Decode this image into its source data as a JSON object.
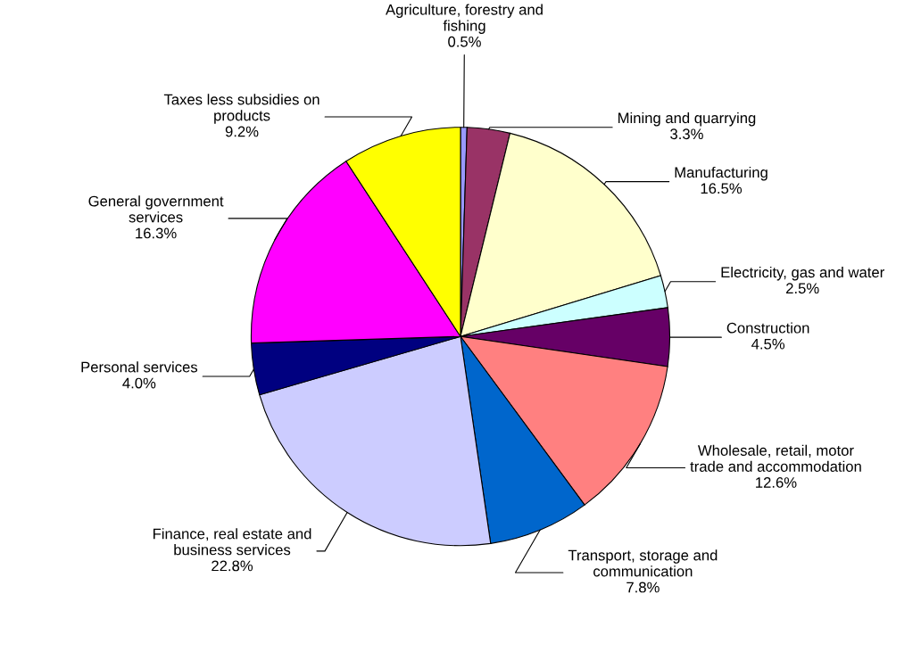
{
  "chart_data": {
    "type": "pie",
    "categories": [
      "Agriculture, forestry and\nfishing",
      "Mining and quarrying",
      "Manufacturing",
      "Electricity, gas and water",
      "Construction",
      "Wholesale, retail, motor\ntrade and accommodation",
      "Transport, storage and\ncommunication",
      "Finance, real estate and\nbusiness services",
      "Personal services",
      "General government\nservices",
      "Taxes less subsidies on\nproducts"
    ],
    "values": [
      0.5,
      3.3,
      16.5,
      2.5,
      4.5,
      12.6,
      7.8,
      22.8,
      4.0,
      16.3,
      9.2
    ],
    "value_labels": [
      "0.5%",
      "3.3%",
      "16.5%",
      "2.5%",
      "4.5%",
      "12.6%",
      "7.8%",
      "22.8%",
      "4.0%",
      "16.3%",
      "9.2%"
    ],
    "colors": [
      "#9999ff",
      "#993366",
      "#ffffcc",
      "#ccffff",
      "#660066",
      "#ff8080",
      "#0066cc",
      "#ccccff",
      "#000080",
      "#ff00ff",
      "#ffff00"
    ],
    "legend": false
  }
}
